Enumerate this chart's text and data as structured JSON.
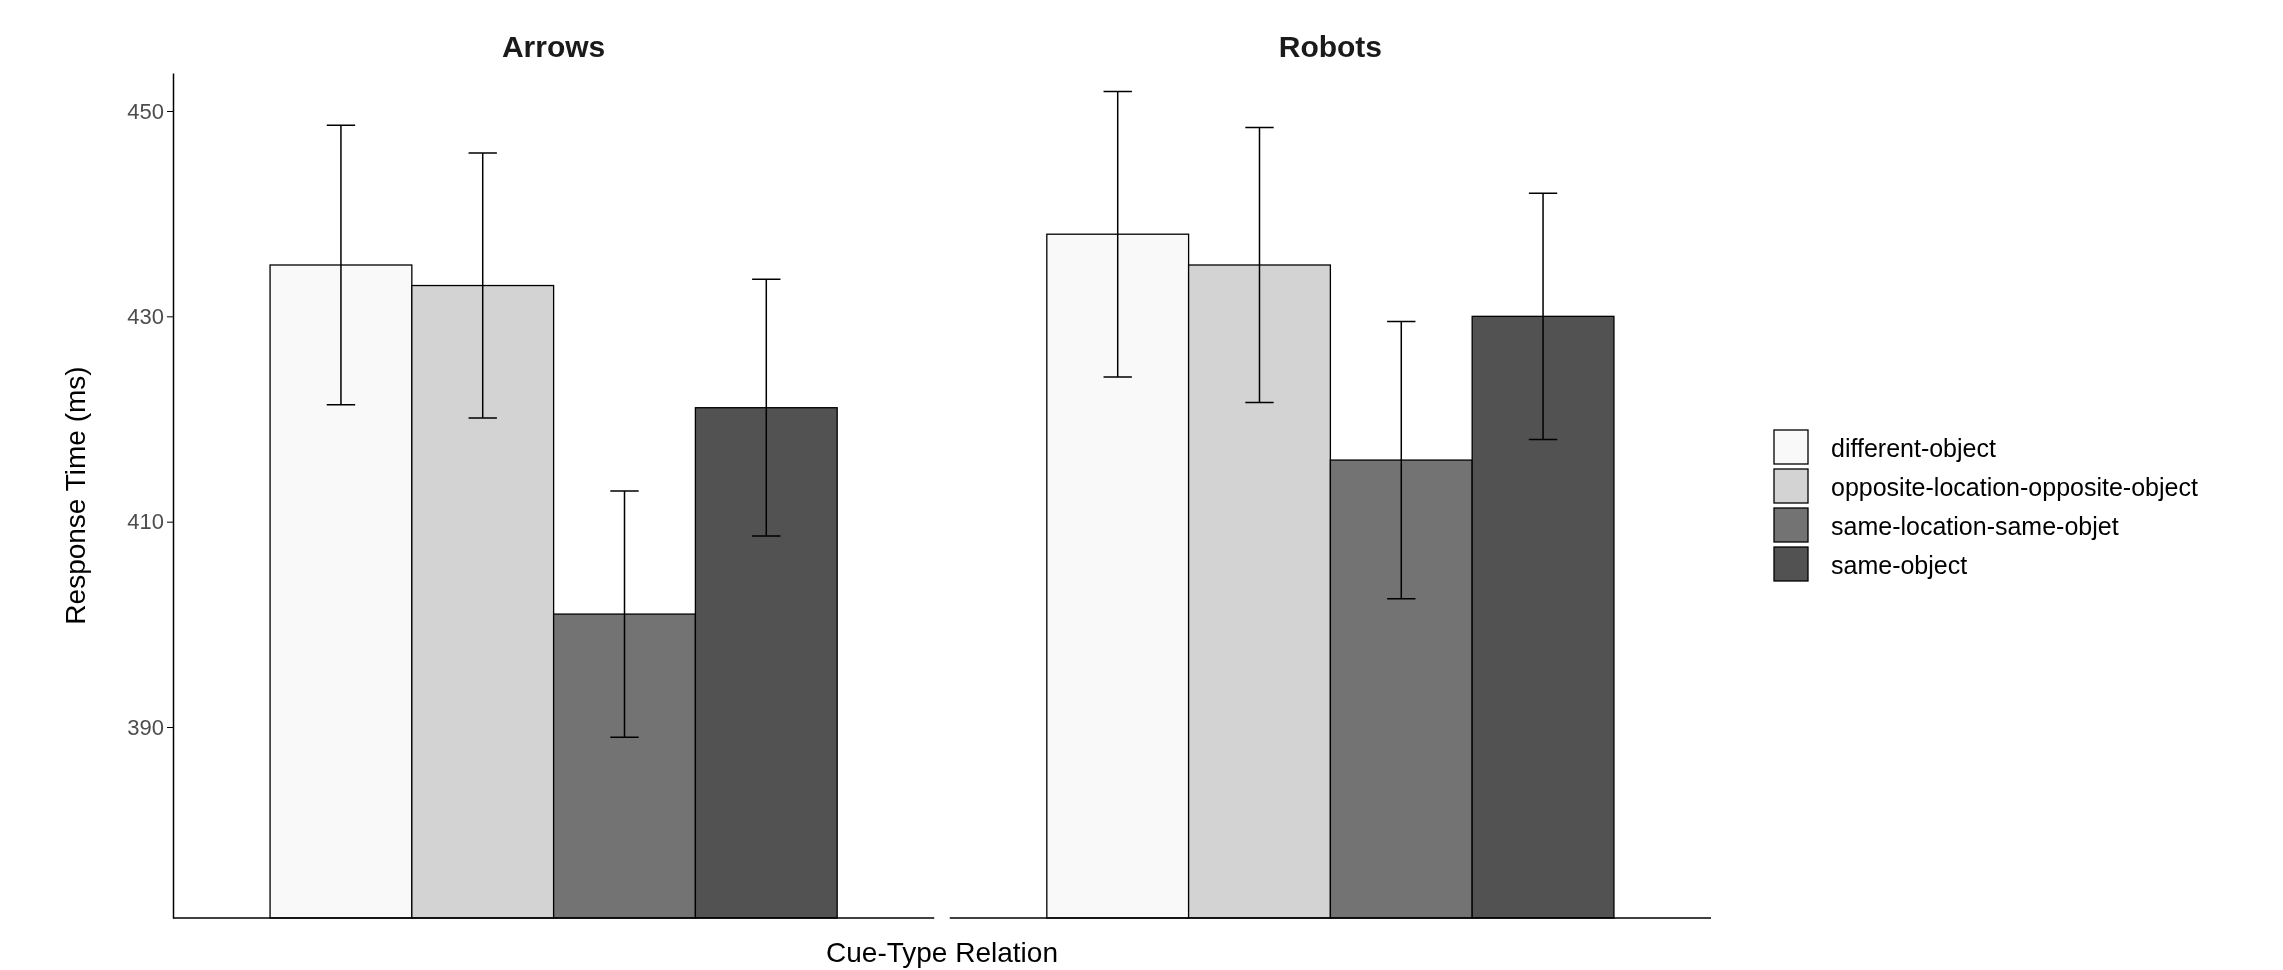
{
  "chart_data": {
    "type": "bar",
    "xlabel": "Cue-Type Relation",
    "ylabel": "Response Time (ms)",
    "categories": [
      "Arrows",
      "Robots"
    ],
    "ylim": [
      371.4,
      453.7
    ],
    "yticks": [
      390,
      410,
      430,
      450
    ],
    "legend": "right",
    "series": [
      {
        "name": "different-object",
        "color": "#f9f9f9",
        "values": [
          435.0,
          438.0
        ],
        "errors": [
          13.6,
          13.9
        ]
      },
      {
        "name": "opposite-location-opposite-object",
        "color": "#d3d3d3",
        "values": [
          433.0,
          435.0
        ],
        "errors": [
          12.9,
          13.4
        ]
      },
      {
        "name": "same-location-same-objet",
        "color": "#737373",
        "values": [
          401.0,
          416.0
        ],
        "errors": [
          12.0,
          13.5
        ]
      },
      {
        "name": "same-object",
        "color": "#525252",
        "values": [
          421.1,
          430.0
        ],
        "errors": [
          12.5,
          12.0
        ]
      }
    ]
  }
}
